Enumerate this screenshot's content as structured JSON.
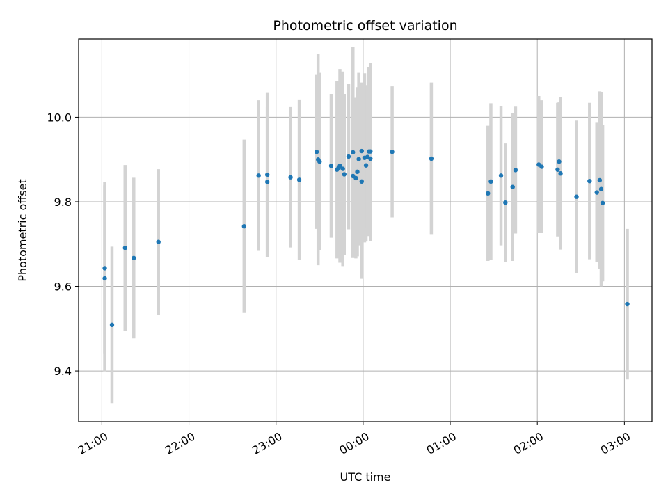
{
  "chart_data": {
    "type": "scatter",
    "title": "Photometric offset variation",
    "xlabel": "UTC time",
    "ylabel": "Photometric offset",
    "x_unit": "UTC hh:mm",
    "xlim": [
      "20:44",
      "03:19"
    ],
    "ylim": [
      9.28,
      10.185
    ],
    "x_ticks": [
      "21:00",
      "22:00",
      "23:00",
      "00:00",
      "01:00",
      "02:00",
      "03:00"
    ],
    "y_ticks": [
      9.4,
      9.6,
      9.8,
      10.0
    ],
    "grid": true,
    "legend": "none",
    "colors": {
      "point": "#1f77b4",
      "error_bar": "#d3d3d3",
      "grid": "#b0b0b0"
    },
    "series": [
      {
        "x": [
          "21:02",
          "21:02",
          "21:07",
          "21:16",
          "21:22",
          "21:39",
          "22:38",
          "22:48",
          "22:54",
          "22:54",
          "23:10",
          "23:16",
          "23:28",
          "23:29",
          "23:30",
          "23:38",
          "23:42",
          "23:43",
          "23:44",
          "23:46",
          "23:47",
          "23:50",
          "23:53",
          "23:53",
          "23:55",
          "23:56",
          "23:57",
          "23:59",
          "23:59",
          "00:01",
          "00:02",
          "00:03",
          "00:04",
          "00:05",
          "00:05",
          "00:20",
          "00:47",
          "01:26",
          "01:28",
          "01:35",
          "01:38",
          "01:43",
          "01:45",
          "02:01",
          "02:03",
          "02:14",
          "02:15",
          "02:16",
          "02:27",
          "02:36",
          "02:41",
          "02:43",
          "02:44",
          "02:45",
          "03:02"
        ],
        "y": [
          9.643,
          9.619,
          9.509,
          9.691,
          9.667,
          9.705,
          9.742,
          9.862,
          9.864,
          9.847,
          9.858,
          9.852,
          9.918,
          9.9,
          9.895,
          9.885,
          9.876,
          9.88,
          9.885,
          9.878,
          9.865,
          9.907,
          9.917,
          9.861,
          9.856,
          9.871,
          9.901,
          9.92,
          9.848,
          9.904,
          9.886,
          9.906,
          9.919,
          9.902,
          9.919,
          9.918,
          9.902,
          9.82,
          9.848,
          9.862,
          9.798,
          9.835,
          9.875,
          9.888,
          9.883,
          9.876,
          9.895,
          9.867,
          9.812,
          9.849,
          9.822,
          9.851,
          9.83,
          9.797,
          9.558
        ],
        "y_err": [
          0.203,
          0.22,
          0.185,
          0.196,
          0.19,
          0.172,
          0.205,
          0.178,
          0.195,
          0.177,
          0.166,
          0.19,
          0.182,
          0.25,
          0.21,
          0.17,
          0.21,
          0.2,
          0.229,
          0.23,
          0.19,
          0.172,
          0.25,
          0.19,
          0.19,
          0.2,
          0.204,
          0.162,
          0.23,
          0.2,
          0.18,
          0.17,
          0.2,
          0.195,
          0.21,
          0.155,
          0.18,
          0.16,
          0.185,
          0.165,
          0.14,
          0.175,
          0.15,
          0.162,
          0.157,
          0.158,
          0.14,
          0.18,
          0.18,
          0.185,
          0.165,
          0.21,
          0.23,
          0.185,
          0.178
        ]
      }
    ]
  }
}
